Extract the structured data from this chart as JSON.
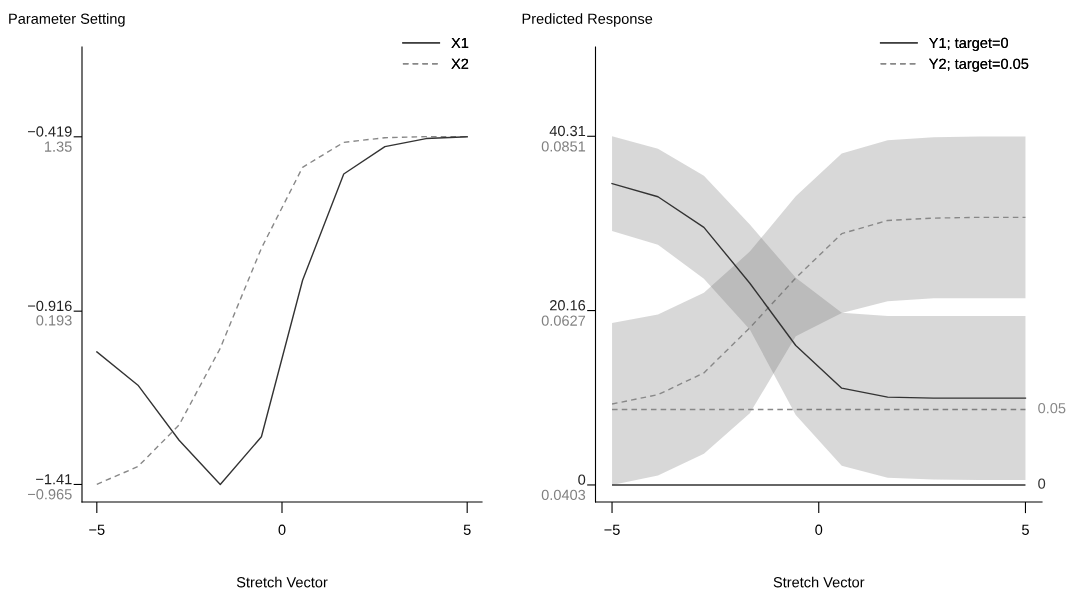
{
  "chart_data": [
    {
      "type": "line",
      "title": "Parameter Setting",
      "xlabel": "Stretch Vector",
      "legend": "top right",
      "x": [
        -5,
        -3.889,
        -2.778,
        -1.667,
        -0.556,
        0.556,
        1.667,
        2.778,
        3.889,
        5
      ],
      "xlim": [
        -5.4,
        5.4
      ],
      "xticks": [
        -5,
        0,
        5
      ],
      "ylim": [
        -1.46,
        -0.163
      ],
      "yticks": [
        -1.41,
        -0.916,
        -0.419
      ],
      "y2lim": [
        -1.083,
        1.947
      ],
      "y2ticks": [
        -0.965,
        0.193,
        1.35
      ],
      "series": [
        {
          "name": "X1",
          "color": "#333333",
          "line_style": "solid",
          "values": [
            -1.032,
            -1.127,
            -1.284,
            -1.41,
            -1.274,
            -0.828,
            -0.525,
            -0.447,
            -0.424,
            -0.419
          ]
        },
        {
          "name": "X2",
          "color": "#888888",
          "line_style": "dashed",
          "axis": "y2",
          "values": [
            -0.965,
            -0.847,
            -0.57,
            -0.059,
            0.607,
            1.146,
            1.312,
            1.343,
            1.35,
            1.35
          ]
        }
      ]
    },
    {
      "type": "line",
      "title": "Predicted Response",
      "xlabel": "Stretch Vector",
      "legend": "top right",
      "x": [
        -5,
        -3.889,
        -2.778,
        -1.667,
        -0.556,
        0.556,
        1.667,
        2.778,
        3.889,
        5
      ],
      "xlim": [
        -5.4,
        5.4
      ],
      "xticks": [
        -5,
        0,
        5
      ],
      "ylim": [
        -1.97,
        50.63
      ],
      "yticks": [
        0,
        20.16,
        40.31
      ],
      "y2lim": [
        0.0381,
        0.0966
      ],
      "y2ticks": [
        0.0403,
        0.0627,
        0.0851
      ],
      "series": [
        {
          "name": "Y1; target=0",
          "color": "#333333",
          "line_style": "solid",
          "values": [
            34.84,
            33.32,
            29.78,
            23.32,
            16.12,
            11.19,
            10.16,
            10.04,
            10.04,
            10.04
          ],
          "lower": [
            29.37,
            27.77,
            23.85,
            17.97,
            8.1,
            2.22,
            0.82,
            0.62,
            0.58,
            0.58
          ],
          "upper": [
            40.31,
            38.87,
            35.74,
            30.11,
            23.94,
            19.91,
            19.54,
            19.54,
            19.54,
            19.54
          ]
        },
        {
          "name": "Y2; target=0.05",
          "color": "#888888",
          "line_style": "dashed",
          "axis": "y2",
          "values": [
            0.0507,
            0.0519,
            0.0547,
            0.0605,
            0.0669,
            0.0726,
            0.0743,
            0.0746,
            0.0747,
            0.0747
          ],
          "lower": [
            0.0403,
            0.0415,
            0.0443,
            0.0495,
            0.0594,
            0.0624,
            0.0639,
            0.0643,
            0.0643,
            0.0643
          ],
          "upper": [
            0.0611,
            0.0622,
            0.065,
            0.0703,
            0.0774,
            0.0829,
            0.0846,
            0.085,
            0.0851,
            0.0851
          ]
        }
      ],
      "ref_lines": [
        {
          "axis": "y",
          "value": 0,
          "label": "0",
          "color": "#333333",
          "line_style": "solid"
        },
        {
          "axis": "y2",
          "value": 0.05,
          "label": "0.05",
          "color": "#888888",
          "line_style": "dashed"
        }
      ]
    }
  ]
}
